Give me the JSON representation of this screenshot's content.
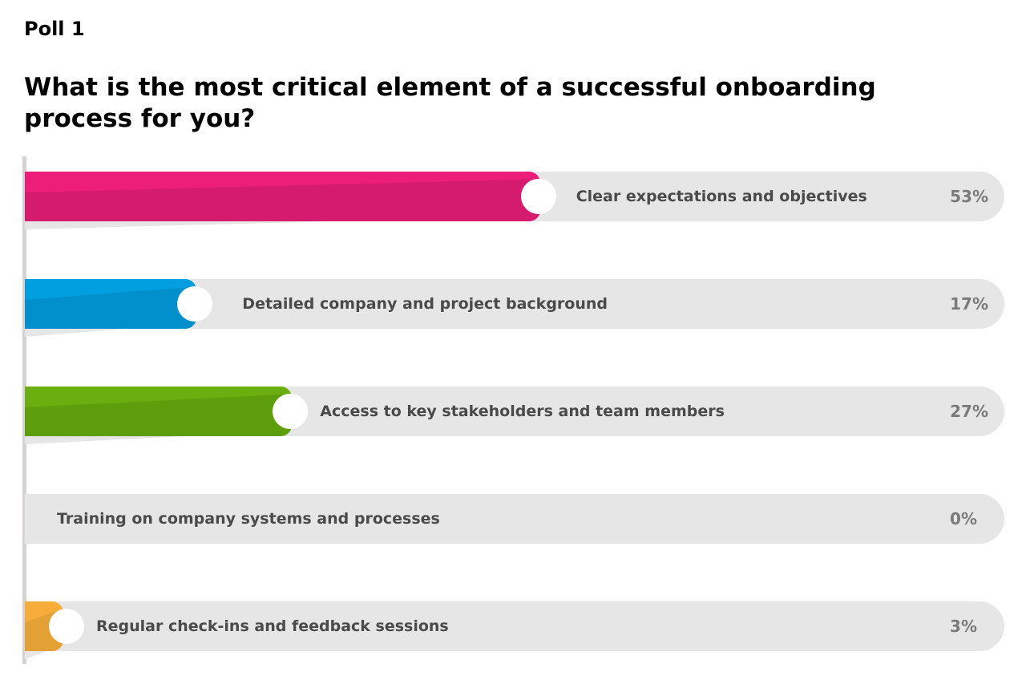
{
  "poll_label": "Poll 1",
  "question": "What is the most critical element of a successful onboarding process for you?",
  "chart_data": {
    "type": "bar",
    "orientation": "horizontal",
    "title": "What is the most critical element of a successful onboarding process for you?",
    "categories": [
      "Clear expectations and objectives",
      "Detailed company and project background",
      "Access to key stakeholders and team members",
      "Training on company systems and processes",
      "Regular check-ins and feedback sessions"
    ],
    "values": [
      53,
      17,
      27,
      0,
      3
    ],
    "labels": [
      "53%",
      "17%",
      "27%",
      "0%",
      "3%"
    ],
    "colors": [
      "#ec1e79",
      "#019fe0",
      "#6aae10",
      "#cccccc",
      "#f7ad3c"
    ],
    "dark_colors": [
      "#d51b6d",
      "#0190cc",
      "#5e9e0c",
      "#cccccc",
      "#e3a035"
    ],
    "xlim": [
      0,
      100
    ],
    "track_color": "#e6e6e6"
  }
}
